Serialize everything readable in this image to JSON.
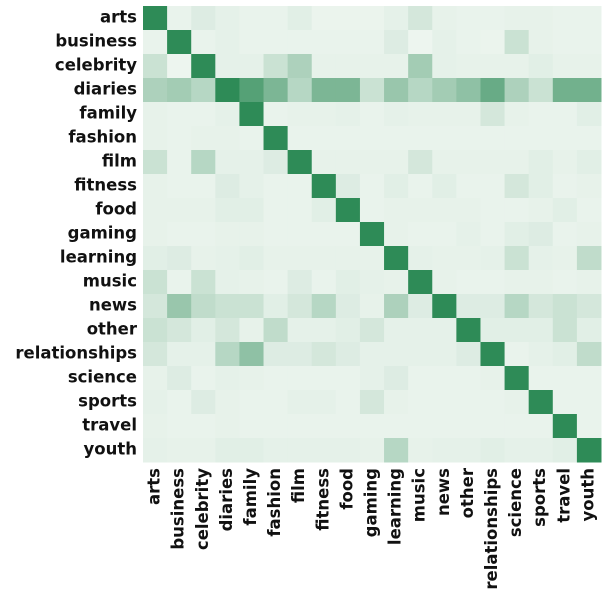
{
  "chart_data": {
    "type": "heatmap",
    "categories": [
      "arts",
      "business",
      "celebrity",
      "diaries",
      "family",
      "fashion",
      "film",
      "fitness",
      "food",
      "gaming",
      "learning",
      "music",
      "news",
      "other",
      "relationships",
      "science",
      "sports",
      "travel",
      "youth"
    ],
    "colors": [
      "#edf5ef",
      "#2e8b57"
    ],
    "values": [
      [
        1,
        0.04,
        0.1,
        0.06,
        0.04,
        0.04,
        0.08,
        0.03,
        0.03,
        0.03,
        0.06,
        0.15,
        0.05,
        0.04,
        0.04,
        0.05,
        0.05,
        0.04,
        0.04
      ],
      [
        0.04,
        1,
        0.04,
        0.06,
        0.04,
        0.04,
        0.04,
        0.04,
        0.04,
        0.04,
        0.1,
        0.02,
        0.06,
        0.04,
        0.03,
        0.2,
        0.05,
        0.04,
        0.04
      ],
      [
        0.2,
        0.02,
        1,
        0.06,
        0.06,
        0.2,
        0.35,
        0.05,
        0.05,
        0.05,
        0.05,
        0.4,
        0.06,
        0.05,
        0.05,
        0.05,
        0.08,
        0.05,
        0.05
      ],
      [
        0.35,
        0.4,
        0.3,
        1,
        0.8,
        0.6,
        0.3,
        0.6,
        0.6,
        0.2,
        0.45,
        0.3,
        0.4,
        0.5,
        0.7,
        0.35,
        0.2,
        0.65,
        0.65
      ],
      [
        0.05,
        0.04,
        0.04,
        0.06,
        1,
        0.04,
        0.05,
        0.05,
        0.06,
        0.04,
        0.06,
        0.05,
        0.05,
        0.05,
        0.15,
        0.05,
        0.04,
        0.04,
        0.08
      ],
      [
        0.05,
        0.04,
        0.05,
        0.05,
        0.04,
        1,
        0.04,
        0.04,
        0.04,
        0.04,
        0.04,
        0.04,
        0.04,
        0.04,
        0.04,
        0.04,
        0.04,
        0.04,
        0.04
      ],
      [
        0.2,
        0.04,
        0.3,
        0.06,
        0.06,
        0.1,
        1,
        0.05,
        0.05,
        0.05,
        0.05,
        0.15,
        0.05,
        0.05,
        0.05,
        0.05,
        0.08,
        0.05,
        0.08
      ],
      [
        0.05,
        0.04,
        0.04,
        0.1,
        0.06,
        0.04,
        0.04,
        1,
        0.1,
        0.04,
        0.08,
        0.04,
        0.08,
        0.04,
        0.04,
        0.15,
        0.08,
        0.04,
        0.05
      ],
      [
        0.05,
        0.05,
        0.05,
        0.08,
        0.08,
        0.04,
        0.04,
        0.08,
        1,
        0.04,
        0.05,
        0.05,
        0.05,
        0.05,
        0.04,
        0.04,
        0.05,
        0.08,
        0.04
      ],
      [
        0.05,
        0.04,
        0.04,
        0.05,
        0.05,
        0.04,
        0.04,
        0.04,
        0.04,
        1,
        0.05,
        0.04,
        0.04,
        0.06,
        0.04,
        0.08,
        0.1,
        0.04,
        0.05
      ],
      [
        0.08,
        0.1,
        0.05,
        0.06,
        0.08,
        0.05,
        0.05,
        0.05,
        0.05,
        0.05,
        1,
        0.06,
        0.05,
        0.05,
        0.06,
        0.2,
        0.06,
        0.05,
        0.25
      ],
      [
        0.2,
        0.04,
        0.2,
        0.06,
        0.05,
        0.04,
        0.1,
        0.04,
        0.08,
        0.06,
        0.05,
        1,
        0.05,
        0.04,
        0.04,
        0.05,
        0.05,
        0.04,
        0.05
      ],
      [
        0.15,
        0.45,
        0.25,
        0.2,
        0.2,
        0.08,
        0.15,
        0.3,
        0.1,
        0.05,
        0.35,
        0.1,
        1,
        0.1,
        0.1,
        0.3,
        0.15,
        0.2,
        0.15
      ],
      [
        0.2,
        0.15,
        0.08,
        0.15,
        0.05,
        0.25,
        0.06,
        0.06,
        0.08,
        0.15,
        0.06,
        0.06,
        0.06,
        1,
        0.08,
        0.08,
        0.08,
        0.2,
        0.08
      ],
      [
        0.15,
        0.06,
        0.06,
        0.3,
        0.5,
        0.1,
        0.1,
        0.15,
        0.1,
        0.06,
        0.06,
        0.06,
        0.06,
        0.1,
        1,
        0.04,
        0.06,
        0.08,
        0.25
      ],
      [
        0.05,
        0.1,
        0.04,
        0.06,
        0.05,
        0.04,
        0.04,
        0.04,
        0.04,
        0.06,
        0.1,
        0.04,
        0.04,
        0.04,
        0.05,
        1,
        0.04,
        0.04,
        0.04
      ],
      [
        0.06,
        0.04,
        0.1,
        0.05,
        0.04,
        0.04,
        0.06,
        0.06,
        0.04,
        0.15,
        0.05,
        0.04,
        0.04,
        0.04,
        0.04,
        0.05,
        1,
        0.04,
        0.04
      ],
      [
        0.05,
        0.04,
        0.04,
        0.05,
        0.04,
        0.04,
        0.04,
        0.04,
        0.04,
        0.04,
        0.04,
        0.04,
        0.04,
        0.04,
        0.04,
        0.04,
        0.04,
        1,
        0.04
      ],
      [
        0.06,
        0.05,
        0.05,
        0.08,
        0.08,
        0.06,
        0.06,
        0.06,
        0.06,
        0.05,
        0.3,
        0.05,
        0.06,
        0.06,
        0.08,
        0.06,
        0.06,
        0.08,
        1
      ]
    ]
  }
}
